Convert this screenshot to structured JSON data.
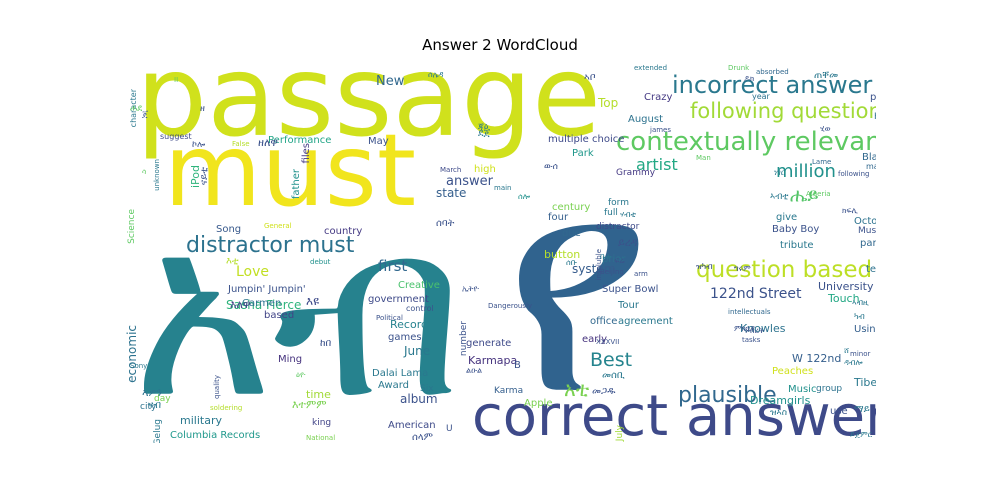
{
  "title": "Answer 2 WordCloud",
  "palette": {
    "yellow": "#e7e419",
    "lime": "#c2df23",
    "green": "#5ec962",
    "teal": "#21918c",
    "blue": "#3b528b",
    "navy": "#414487",
    "purple": "#440154"
  },
  "words": [
    {
      "text": "passage",
      "color": "#d0e11c"
    },
    {
      "text": "must",
      "color": "#f1e51d"
    },
    {
      "text": "የ",
      "color": "#30638e"
    },
    {
      "text": "አብ",
      "color": "#26828e"
    },
    {
      "text": "correct answer",
      "color": "#3e4a89"
    },
    {
      "text": "incorrect answer",
      "color": "#2a788e"
    },
    {
      "text": "following question",
      "color": "#a2da37"
    },
    {
      "text": "contextually relevant",
      "color": "#5ec962"
    },
    {
      "text": "distractor must",
      "color": "#2c728e"
    },
    {
      "text": "question based",
      "color": "#bddf26"
    },
    {
      "text": "plausible",
      "color": "#31688e"
    },
    {
      "text": "Best",
      "color": "#25848e"
    },
    {
      "text": "million",
      "color": "#21918c"
    },
    {
      "text": "artist",
      "color": "#22a884"
    },
    {
      "text": "answer",
      "color": "#3b528b"
    },
    {
      "text": "አቲ",
      "color": "#7ad151"
    },
    {
      "text": "122nd Street",
      "color": "#3b528b"
    },
    {
      "text": "first",
      "color": "#31688e"
    },
    {
      "text": "Love",
      "color": "#c2df23"
    },
    {
      "text": "ሔይ",
      "color": "#54c568"
    },
    {
      "text": "New",
      "color": "#31688e"
    },
    {
      "text": "Top",
      "color": "#b5de2b"
    },
    {
      "text": "state",
      "color": "#355f8d"
    },
    {
      "text": "Song",
      "color": "#38598c"
    },
    {
      "text": "country",
      "color": "#443983"
    },
    {
      "text": "June",
      "color": "#2a788e"
    },
    {
      "text": "system",
      "color": "#365c8d"
    },
    {
      "text": "button",
      "color": "#b5de2b"
    },
    {
      "text": "album",
      "color": "#3b528b"
    },
    {
      "text": "Sasha Fierce",
      "color": "#2fb47c"
    },
    {
      "text": "Carmen",
      "color": "#2c728e"
    },
    {
      "text": "Jumpin' Jumpin'",
      "color": "#3b528b"
    },
    {
      "text": "Creative",
      "color": "#4ac16d"
    },
    {
      "text": "government",
      "color": "#3e4a89"
    },
    {
      "text": "Record",
      "color": "#26828e"
    },
    {
      "text": "games",
      "color": "#3b528b"
    },
    {
      "text": "Karmapa",
      "color": "#46337e"
    },
    {
      "text": "Dalai Lama",
      "color": "#2a788e"
    },
    {
      "text": "Award",
      "color": "#2a788e"
    },
    {
      "text": "Six",
      "color": "#2a788e"
    },
    {
      "text": "American",
      "color": "#3e4a89"
    },
    {
      "text": "Columbia Records",
      "color": "#1f988b"
    },
    {
      "text": "military",
      "color": "#2a788e"
    },
    {
      "text": "king",
      "color": "#414487"
    },
    {
      "text": "Ming",
      "color": "#46337e"
    },
    {
      "text": "time",
      "color": "#a2da37"
    },
    {
      "text": "economic",
      "color": "#2c728e"
    },
    {
      "text": "based",
      "color": "#414487"
    },
    {
      "text": "Performance",
      "color": "#20a486"
    },
    {
      "text": "ዘለዋ",
      "color": "#3b528b"
    },
    {
      "text": "May",
      "color": "#3b528b"
    },
    {
      "text": "files",
      "color": "#443983"
    },
    {
      "text": "father",
      "color": "#21918c"
    },
    {
      "text": "iPod",
      "color": "#2fb47c"
    },
    {
      "text": "Super Bowl",
      "color": "#3b528b"
    },
    {
      "text": "agreement",
      "color": "#2a788e"
    },
    {
      "text": "Tour",
      "color": "#2a788e"
    },
    {
      "text": "office",
      "color": "#31688e"
    },
    {
      "text": "early",
      "color": "#46337e"
    },
    {
      "text": "prior",
      "color": "#2c728e"
    },
    {
      "text": "due",
      "color": "#31688e"
    },
    {
      "text": "four",
      "color": "#355f8d"
    },
    {
      "text": "century",
      "color": "#7ad151"
    },
    {
      "text": "form",
      "color": "#2a788e"
    },
    {
      "text": "full",
      "color": "#2a788e"
    },
    {
      "text": "distractor",
      "color": "#3e4a89"
    },
    {
      "text": "multiple choice",
      "color": "#3e4a89"
    },
    {
      "text": "Park",
      "color": "#1f988b"
    },
    {
      "text": "August",
      "color": "#2c728e"
    },
    {
      "text": "Crazy",
      "color": "#443983"
    },
    {
      "text": "Grammy",
      "color": "#443983"
    },
    {
      "text": "University",
      "color": "#3b528b"
    },
    {
      "text": "Touch",
      "color": "#22a884"
    },
    {
      "text": "Knowles",
      "color": "#2c728e"
    },
    {
      "text": "W 122nd",
      "color": "#355f8d"
    },
    {
      "text": "Using",
      "color": "#355f8d"
    },
    {
      "text": "Tibet",
      "color": "#2a788e"
    },
    {
      "text": "Dreamgirls",
      "color": "#21918c"
    },
    {
      "text": "Peaches",
      "color": "#d0e11c"
    },
    {
      "text": "Music",
      "color": "#21918c"
    },
    {
      "text": "group",
      "color": "#2c728e"
    },
    {
      "text": "use",
      "color": "#3b528b"
    },
    {
      "text": "Baby Boy",
      "color": "#3b528b"
    },
    {
      "text": "tribute",
      "color": "#2a788e"
    },
    {
      "text": "give",
      "color": "#2a788e"
    },
    {
      "text": "October",
      "color": "#2c728e"
    },
    {
      "text": "party",
      "color": "#31688e"
    },
    {
      "text": "term",
      "color": "#2c728e"
    },
    {
      "text": "January",
      "color": "#2a788e"
    },
    {
      "text": "pope",
      "color": "#3b528b"
    },
    {
      "text": "Herb",
      "color": "#2c728e"
    },
    {
      "text": "Black",
      "color": "#31688e"
    },
    {
      "text": "made",
      "color": "#31688e"
    },
    {
      "text": "Muslims",
      "color": "#3b528b"
    },
    {
      "text": "Apple",
      "color": "#7ad151"
    },
    {
      "text": "Karma",
      "color": "#355f8d"
    },
    {
      "text": "high",
      "color": "#d0e11c"
    },
    {
      "text": "generate",
      "color": "#3e4a89"
    },
    {
      "text": "number",
      "color": "#3b528b"
    },
    {
      "text": "July",
      "color": "#a2da37"
    },
    {
      "text": "Gelug",
      "color": "#2a788e"
    },
    {
      "text": "city",
      "color": "#2c728e"
    },
    {
      "text": "day",
      "color": "#7ad151"
    },
    {
      "text": "Science",
      "color": "#5ec962"
    },
    {
      "text": "character",
      "color": "#2a788e"
    },
    {
      "text": "unknown",
      "color": "#2a788e"
    },
    {
      "text": "suggest",
      "color": "#3e4a89"
    },
    {
      "text": "False",
      "color": "#b5de2b"
    },
    {
      "text": "General",
      "color": "#d0e11c"
    },
    {
      "text": "debut",
      "color": "#21918c"
    },
    {
      "text": "Political",
      "color": "#3b528b"
    },
    {
      "text": "control",
      "color": "#3b528b"
    },
    {
      "text": "Dangerously",
      "color": "#3b528b"
    },
    {
      "text": "Sony",
      "color": "#2a788e"
    },
    {
      "text": "quality",
      "color": "#3b528b"
    },
    {
      "text": "soldering",
      "color": "#b5de2b"
    },
    {
      "text": "National",
      "color": "#7ad151"
    },
    {
      "text": "March",
      "color": "#3e4a89"
    },
    {
      "text": "main",
      "color": "#2a788e"
    },
    {
      "text": "insoluble",
      "color": "#3b528b"
    },
    {
      "text": "Beijing",
      "color": "#3b528b"
    },
    {
      "text": "arm",
      "color": "#3b528b"
    },
    {
      "text": "james",
      "color": "#3b528b"
    },
    {
      "text": "Man",
      "color": "#5ec962"
    },
    {
      "text": "intellectuals",
      "color": "#31688e"
    },
    {
      "text": "minor",
      "color": "#3b528b"
    },
    {
      "text": "Lame",
      "color": "#31688e"
    },
    {
      "text": "following",
      "color": "#3b528b"
    },
    {
      "text": "Algeria",
      "color": "#5ec962"
    },
    {
      "text": "tasks",
      "color": "#3b528b"
    },
    {
      "text": "extended",
      "color": "#2a788e"
    },
    {
      "text": "Drunk",
      "color": "#5ec962"
    },
    {
      "text": "absorbed",
      "color": "#31688e"
    },
    {
      "text": "year",
      "color": "#2c728e"
    },
    {
      "text": "XXXVII",
      "color": "#3b528b"
    },
    {
      "text": "B",
      "color": "#3b528b"
    },
    {
      "text": "U",
      "color": "#3b528b"
    },
    {
      "text": "E",
      "color": "#3b528b"
    },
    {
      "text": "II",
      "color": "#5ec962"
    },
    {
      "text": "ዘ",
      "color": "#3b528b"
    },
    {
      "text": "ጀ",
      "color": "#3b528b"
    },
    {
      "text": "ሳ",
      "color": "#5ec962"
    },
    {
      "text": "ኢትዮ",
      "color": "#3b528b"
    },
    {
      "text": "እዩ",
      "color": "#3e4a89"
    },
    {
      "text": "እለዋ",
      "color": "#414487"
    },
    {
      "text": "ሰባት",
      "color": "#3b528b"
    },
    {
      "text": "ሰሎ",
      "color": "#21918c"
    },
    {
      "text": "ጃዕ",
      "color": "#2a788e"
    },
    {
      "text": "እተምም",
      "color": "#7ad151"
    },
    {
      "text": "ከበ",
      "color": "#3b528b"
    },
    {
      "text": "ኣዎን",
      "color": "#2c728e"
    },
    {
      "text": "ናብ",
      "color": "#2a788e"
    },
    {
      "text": "ናይቲ",
      "color": "#3b528b"
    },
    {
      "text": "ኮሎ",
      "color": "#3b528b"
    },
    {
      "text": "ውሰ",
      "color": "#3b528b"
    },
    {
      "text": "ይረዳ",
      "color": "#3b528b"
    },
    {
      "text": "ዝኣስ",
      "color": "#2a788e"
    },
    {
      "text": "ሰቡ",
      "color": "#2a788e"
    },
    {
      "text": "ግሩም",
      "color": "#3b528b"
    },
    {
      "text": "ደጀ",
      "color": "#2a788e"
    },
    {
      "text": "ሰላም",
      "color": "#3b528b"
    },
    {
      "text": "መሰቢ",
      "color": "#2a788e"
    },
    {
      "text": "መጋዱ",
      "color": "#3b528b"
    },
    {
      "text": "እቲ",
      "color": "#b5de2b"
    },
    {
      "text": "ኣቦ",
      "color": "#3b528b"
    },
    {
      "text": "ማይ",
      "color": "#2a788e"
    },
    {
      "text": "ሂወ",
      "color": "#3b528b"
    },
    {
      "text": "ኣብቲ",
      "color": "#2a788e"
    },
    {
      "text": "ክፍሊ",
      "color": "#3b528b"
    },
    {
      "text": "ዝካብ",
      "color": "#3b528b"
    },
    {
      "text": "ይጀምር",
      "color": "#2a788e"
    },
    {
      "text": "ኣብዚ",
      "color": "#2a788e"
    },
    {
      "text": "ካብ",
      "color": "#2a788e"
    },
    {
      "text": "ዳብሎ",
      "color": "#2a788e"
    },
    {
      "text": "ሸ",
      "color": "#2a788e"
    },
    {
      "text": "ቤት",
      "color": "#2a788e"
    },
    {
      "text": "ሃብቲ",
      "color": "#2a788e"
    },
    {
      "text": "ሰሌዳ",
      "color": "#2a788e"
    },
    {
      "text": "ፍሬ",
      "color": "#3b528b"
    },
    {
      "text": "ነገር",
      "color": "#2a788e"
    },
    {
      "text": "ምክንያ",
      "color": "#3b528b"
    },
    {
      "text": "ጠቐመ",
      "color": "#2a788e"
    },
    {
      "text": "ዶክ",
      "color": "#3b528b"
    },
    {
      "text": "ሐደ",
      "color": "#5ec962"
    },
    {
      "text": "ዕዮ",
      "color": "#5ec962"
    },
    {
      "text": "ልዑል",
      "color": "#3b528b"
    },
    {
      "text": "ንብረት",
      "color": "#3b528b"
    }
  ]
}
